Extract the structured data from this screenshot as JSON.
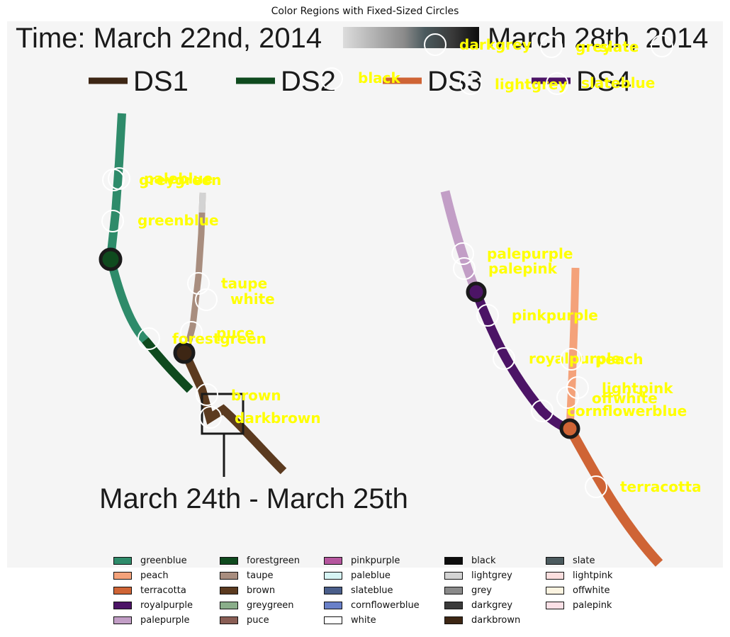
{
  "title": "Color Regions with Fixed-Sized Circles",
  "image_text": {
    "time_start": "Time: March 22nd, 2014",
    "time_end": "March 28th, 2014",
    "ds1": "DS1",
    "ds2": "DS2",
    "ds3": "DS3",
    "ds4": "DS4",
    "inset_caption": "March 24th - March 25th"
  },
  "colors": {
    "background": "#f5f5f5",
    "label": "#ffff00",
    "circle": "#ffffff",
    "ds1": "#3d2614",
    "ds2": "#0f4a1e",
    "ds3": "#cf6435",
    "ds4": "#4c1466"
  },
  "annotations": [
    {
      "text": "darkgrey"
    },
    {
      "text": "grey"
    },
    {
      "text": "slate"
    },
    {
      "text": "black"
    },
    {
      "text": "lightgrey"
    },
    {
      "text": "slateblue"
    },
    {
      "text": "paleblue"
    },
    {
      "text": "greygreen"
    },
    {
      "text": "greenblue"
    },
    {
      "text": "taupe"
    },
    {
      "text": "white"
    },
    {
      "text": "puce"
    },
    {
      "text": "forestgreen"
    },
    {
      "text": "brown"
    },
    {
      "text": "darkbrown"
    },
    {
      "text": "palepurple"
    },
    {
      "text": "palepink"
    },
    {
      "text": "pinkpurple"
    },
    {
      "text": "royalpurple"
    },
    {
      "text": "peach"
    },
    {
      "text": "lightpink"
    },
    {
      "text": "offwhite"
    },
    {
      "text": "cornflowerblue"
    },
    {
      "text": "terracotta"
    }
  ],
  "legend": [
    {
      "label": "greenblue",
      "color": "#2e8b6a"
    },
    {
      "label": "peach",
      "color": "#f4a27a"
    },
    {
      "label": "terracotta",
      "color": "#cf6435"
    },
    {
      "label": "royalpurple",
      "color": "#4c1466"
    },
    {
      "label": "palepurple",
      "color": "#c29ec6"
    },
    {
      "label": "forestgreen",
      "color": "#0f4a1e"
    },
    {
      "label": "taupe",
      "color": "#a88d7e"
    },
    {
      "label": "brown",
      "color": "#5b3a1f"
    },
    {
      "label": "greygreen",
      "color": "#8aae8a"
    },
    {
      "label": "puce",
      "color": "#8a5e55"
    },
    {
      "label": "pinkpurple",
      "color": "#b5569e"
    },
    {
      "label": "paleblue",
      "color": "#d6f4f4"
    },
    {
      "label": "slateblue",
      "color": "#4a5e8a"
    },
    {
      "label": "cornflowerblue",
      "color": "#6980c8"
    },
    {
      "label": "white",
      "color": "#ffffff"
    },
    {
      "label": "black",
      "color": "#0d0d0d"
    },
    {
      "label": "lightgrey",
      "color": "#d3d3d3"
    },
    {
      "label": "grey",
      "color": "#8a8a8a"
    },
    {
      "label": "darkgrey",
      "color": "#3a3a3a"
    },
    {
      "label": "darkbrown",
      "color": "#3d2614"
    },
    {
      "label": "slate",
      "color": "#4b5a5e"
    },
    {
      "label": "lightpink",
      "color": "#fbdede"
    },
    {
      "label": "offwhite",
      "color": "#fbf3e0"
    },
    {
      "label": "palepink",
      "color": "#fbe0e6"
    }
  ]
}
